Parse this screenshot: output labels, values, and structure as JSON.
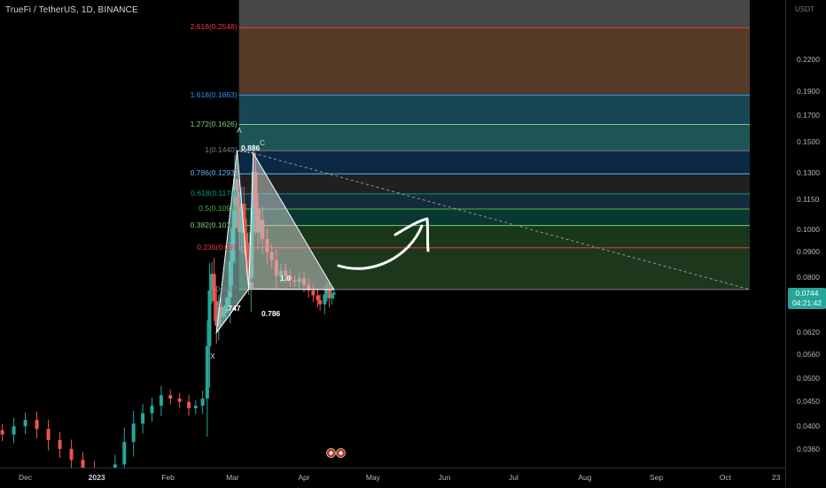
{
  "header": {
    "symbol": "TrueFi / TetherUS, 1D, BINANCE"
  },
  "price_axis": {
    "unit": "USDT",
    "ticks": [
      "0.2200",
      "0.1900",
      "0.1700",
      "0.1500",
      "0.1300",
      "0.1150",
      "0.1000",
      "0.0900",
      "0.0800",
      "0.0620",
      "0.0560",
      "0.0500",
      "0.0450",
      "0.0400",
      "0.0360"
    ],
    "last_price": "0.0744",
    "countdown": "04:21:42"
  },
  "time_axis": {
    "labels": [
      "Dec",
      "2023",
      "Feb",
      "Mar",
      "Apr",
      "May",
      "Jun",
      "Jul",
      "Aug",
      "Sep",
      "Oct",
      "23"
    ],
    "bold": [
      "2023"
    ]
  },
  "colors": {
    "up": "#26a69a",
    "down": "#ef5350",
    "background": "#000000",
    "arrow": "#ffffff"
  },
  "fib_levels": [
    {
      "label": "2.618(0.2548)",
      "price": 0.2548,
      "color": "#f23645"
    },
    {
      "label": "1.618(0.1863)",
      "price": 0.1863,
      "color": "#2196f3"
    },
    {
      "label": "1.272(0.1626)",
      "price": 0.1626,
      "color": "#81c784"
    },
    {
      "label": "1(0.1440)",
      "price": 0.144,
      "color": "#787b86"
    },
    {
      "label": "0.786(0.1293)",
      "price": 0.1293,
      "color": "#64b5f6"
    },
    {
      "label": "0.618(0.1178)",
      "price": 0.1178,
      "color": "#089981"
    },
    {
      "label": "0.5(0.1098)",
      "price": 0.1098,
      "color": "#4caf50"
    },
    {
      "label": "0.382(0.1017)",
      "price": 0.1017,
      "color": "#81c784"
    },
    {
      "label": "0.236(0.091",
      "price": 0.0917,
      "color": "#f23645"
    },
    {
      "label": "0(0.07",
      "price": 0.0755,
      "color": "#787b86"
    }
  ],
  "pattern": {
    "points": [
      {
        "name": "X",
        "date": "2023-02-22",
        "price": 0.0618
      },
      {
        "name": "A",
        "date": "2023-03-03",
        "price": 0.144
      },
      {
        "name": "B",
        "date": "2023-03-08",
        "price": 0.0757
      },
      {
        "name": "C",
        "date": "2023-03-10",
        "price": 0.1423
      },
      {
        "name": "D",
        "date": "2023-04-14",
        "price": 0.0755
      }
    ],
    "ratios": [
      ".747",
      "0.886",
      "1.0",
      "0.786"
    ]
  },
  "chart_data": {
    "type": "candlestick",
    "title": "TrueFi / TetherUS, 1D, BINANCE",
    "scale": "log",
    "ylim": [
      0.033,
      0.29
    ],
    "xlim": [
      "2022-11-20",
      "2023-10-27"
    ],
    "approx_closes": [
      [
        "2022-11-21",
        0.0385
      ],
      [
        "2022-11-26",
        0.04
      ],
      [
        "2022-12-01",
        0.0412
      ],
      [
        "2022-12-06",
        0.0395
      ],
      [
        "2022-12-11",
        0.0375
      ],
      [
        "2022-12-16",
        0.036
      ],
      [
        "2022-12-21",
        0.0342
      ],
      [
        "2022-12-26",
        0.033
      ],
      [
        "2022-12-31",
        0.0322
      ],
      [
        "2023-01-05",
        0.0318
      ],
      [
        "2023-01-09",
        0.0335
      ],
      [
        "2023-01-13",
        0.0372
      ],
      [
        "2023-01-17",
        0.0405
      ],
      [
        "2023-01-21",
        0.0425
      ],
      [
        "2023-01-25",
        0.044
      ],
      [
        "2023-01-29",
        0.0462
      ],
      [
        "2023-02-02",
        0.0455
      ],
      [
        "2023-02-06",
        0.0448
      ],
      [
        "2023-02-10",
        0.0435
      ],
      [
        "2023-02-13",
        0.044
      ],
      [
        "2023-02-16",
        0.0455
      ],
      [
        "2023-02-18",
        0.058
      ],
      [
        "2023-02-19",
        0.0752
      ],
      [
        "2023-02-20",
        0.0812
      ],
      [
        "2023-02-21",
        0.0715
      ],
      [
        "2023-02-22",
        0.0638
      ],
      [
        "2023-02-23",
        0.0695
      ],
      [
        "2023-02-24",
        0.0665
      ],
      [
        "2023-02-25",
        0.0678
      ],
      [
        "2023-02-26",
        0.0702
      ],
      [
        "2023-02-27",
        0.0728
      ],
      [
        "2023-02-28",
        0.086
      ],
      [
        "2023-03-01",
        0.1005
      ],
      [
        "2023-03-02",
        0.126
      ],
      [
        "2023-03-03",
        0.1108
      ],
      [
        "2023-03-04",
        0.0985
      ],
      [
        "2023-03-05",
        0.1125
      ],
      [
        "2023-03-06",
        0.0982
      ],
      [
        "2023-03-07",
        0.088
      ],
      [
        "2023-03-08",
        0.0795
      ],
      [
        "2023-03-09",
        0.0985
      ],
      [
        "2023-03-10",
        0.1305
      ],
      [
        "2023-03-11",
        0.1098
      ],
      [
        "2023-03-12",
        0.0985
      ],
      [
        "2023-03-13",
        0.1045
      ],
      [
        "2023-03-14",
        0.0955
      ],
      [
        "2023-03-16",
        0.0898
      ],
      [
        "2023-03-18",
        0.0865
      ],
      [
        "2023-03-20",
        0.0805
      ],
      [
        "2023-03-22",
        0.0825
      ],
      [
        "2023-03-24",
        0.0805
      ],
      [
        "2023-03-26",
        0.0788
      ],
      [
        "2023-03-28",
        0.0782
      ],
      [
        "2023-03-30",
        0.0795
      ],
      [
        "2023-04-01",
        0.0772
      ],
      [
        "2023-04-03",
        0.0752
      ],
      [
        "2023-04-05",
        0.0735
      ],
      [
        "2023-04-07",
        0.0718
      ],
      [
        "2023-04-08",
        0.0705
      ],
      [
        "2023-04-10",
        0.0738
      ],
      [
        "2023-04-11",
        0.0755
      ],
      [
        "2023-04-12",
        0.0725
      ],
      [
        "2023-04-13",
        0.0738
      ],
      [
        "2023-04-14",
        0.0744
      ]
    ]
  }
}
